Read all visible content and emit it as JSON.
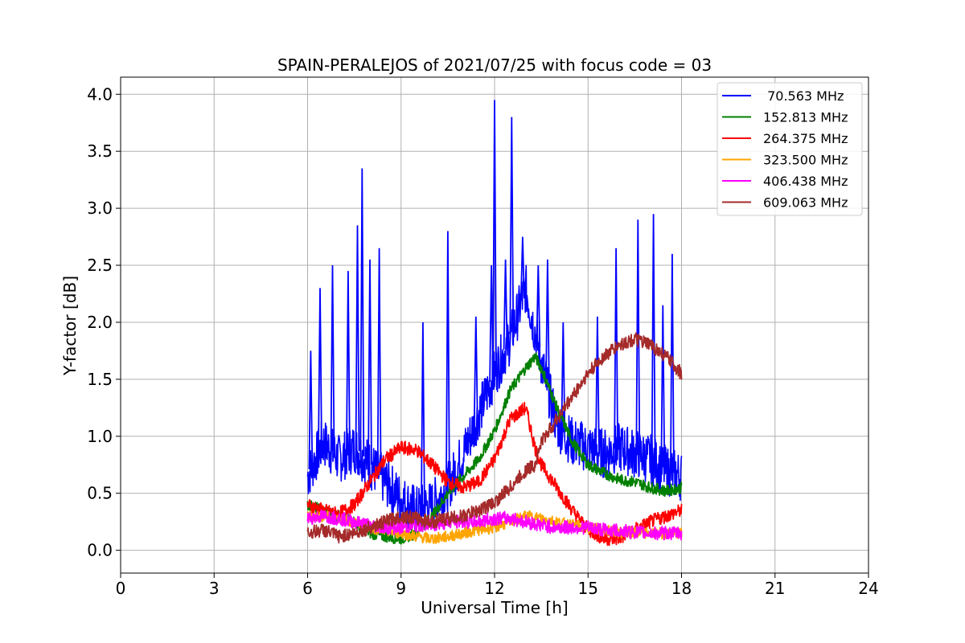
{
  "chart_data": {
    "type": "line",
    "title": "SPAIN-PERALEJOS of 2021/07/25 with focus code = 03",
    "xlabel": "Universal Time [h]",
    "ylabel": "Y-factor [dB]",
    "xlim": [
      0,
      24
    ],
    "ylim": [
      -0.2,
      4.15
    ],
    "xticks": [
      0,
      3,
      6,
      9,
      12,
      15,
      18,
      21,
      24
    ],
    "xtick_labels": [
      "0",
      "3",
      "6",
      "9",
      "12",
      "15",
      "18",
      "21",
      "24"
    ],
    "yticks": [
      0.0,
      0.5,
      1.0,
      1.5,
      2.0,
      2.5,
      3.0,
      3.5,
      4.0
    ],
    "ytick_labels": [
      "0.0",
      "0.5",
      "1.0",
      "1.5",
      "2.0",
      "2.5",
      "3.0",
      "3.5",
      "4.0"
    ],
    "grid": true,
    "legend_position": "top-right",
    "series": [
      {
        "name": " 70.563 MHz",
        "color": "#0000ff",
        "x": [
          6.0,
          6.5,
          7.0,
          7.5,
          8.0,
          8.5,
          9.0,
          9.5,
          10.0,
          10.5,
          11.0,
          11.5,
          12.0,
          12.5,
          13.0,
          13.5,
          14.0,
          14.5,
          15.0,
          15.5,
          16.0,
          16.5,
          17.0,
          17.5,
          18.0
        ],
        "y": [
          0.65,
          0.95,
          0.8,
          0.9,
          0.75,
          0.6,
          0.45,
          0.35,
          0.4,
          0.55,
          0.85,
          1.2,
          1.55,
          1.85,
          2.3,
          1.65,
          1.1,
          0.95,
          0.9,
          0.85,
          0.9,
          0.85,
          0.8,
          0.7,
          0.65
        ],
        "spikes": [
          [
            6.1,
            1.75
          ],
          [
            6.4,
            2.3
          ],
          [
            6.8,
            2.5
          ],
          [
            7.3,
            2.45
          ],
          [
            7.6,
            2.85
          ],
          [
            7.75,
            3.35
          ],
          [
            8.0,
            2.55
          ],
          [
            8.3,
            2.65
          ],
          [
            9.7,
            2.0
          ],
          [
            10.5,
            2.8
          ],
          [
            11.4,
            2.05
          ],
          [
            11.9,
            2.5
          ],
          [
            12.0,
            3.95
          ],
          [
            12.35,
            2.55
          ],
          [
            12.55,
            3.8
          ],
          [
            12.9,
            2.75
          ],
          [
            13.4,
            2.5
          ],
          [
            13.7,
            2.55
          ],
          [
            14.2,
            2.0
          ],
          [
            15.3,
            2.05
          ],
          [
            15.9,
            2.65
          ],
          [
            16.6,
            2.9
          ],
          [
            17.1,
            2.95
          ],
          [
            17.4,
            2.15
          ],
          [
            17.7,
            2.6
          ]
        ]
      },
      {
        "name": "152.813 MHz",
        "color": "#008000",
        "x": [
          6.0,
          6.5,
          7.0,
          7.5,
          8.0,
          8.5,
          9.0,
          9.5,
          10.0,
          10.5,
          11.0,
          11.5,
          12.0,
          12.5,
          13.0,
          13.3,
          13.5,
          14.0,
          14.5,
          15.0,
          15.5,
          16.0,
          16.5,
          17.0,
          17.5,
          18.0
        ],
        "y": [
          0.4,
          0.35,
          0.3,
          0.25,
          0.15,
          0.12,
          0.1,
          0.15,
          0.3,
          0.5,
          0.65,
          0.8,
          1.05,
          1.4,
          1.6,
          1.7,
          1.6,
          1.25,
          0.95,
          0.75,
          0.68,
          0.62,
          0.6,
          0.55,
          0.52,
          0.55
        ]
      },
      {
        "name": "264.375 MHz",
        "color": "#ff0000",
        "x": [
          6.0,
          6.5,
          7.0,
          7.5,
          8.0,
          8.5,
          9.0,
          9.5,
          10.0,
          10.5,
          11.0,
          11.5,
          12.0,
          12.5,
          13.0,
          13.3,
          13.5,
          14.0,
          14.5,
          15.0,
          15.5,
          16.0,
          16.5,
          17.0,
          17.5,
          18.0
        ],
        "y": [
          0.4,
          0.35,
          0.32,
          0.4,
          0.6,
          0.8,
          0.9,
          0.88,
          0.75,
          0.6,
          0.55,
          0.6,
          0.8,
          1.15,
          1.25,
          0.9,
          0.75,
          0.55,
          0.35,
          0.18,
          0.1,
          0.1,
          0.18,
          0.25,
          0.3,
          0.35
        ]
      },
      {
        "name": "323.500 MHz",
        "color": "#ffa500",
        "x": [
          6.0,
          6.5,
          7.0,
          7.5,
          8.0,
          8.5,
          9.0,
          9.5,
          10.0,
          10.5,
          11.0,
          11.5,
          12.0,
          12.5,
          13.0,
          13.5,
          14.0,
          14.5,
          15.0,
          15.5,
          16.0,
          16.5,
          17.0,
          17.5,
          18.0
        ],
        "y": [
          0.3,
          0.3,
          0.28,
          0.25,
          0.2,
          0.17,
          0.15,
          0.12,
          0.1,
          0.12,
          0.15,
          0.18,
          0.2,
          0.25,
          0.3,
          0.28,
          0.25,
          0.22,
          0.2,
          0.18,
          0.16,
          0.15,
          0.15,
          0.15,
          0.15
        ]
      },
      {
        "name": "406.438 MHz",
        "color": "#ff00ff",
        "x": [
          6.0,
          6.5,
          7.0,
          7.5,
          8.0,
          8.5,
          9.0,
          9.5,
          10.0,
          10.5,
          11.0,
          11.5,
          12.0,
          12.5,
          13.0,
          13.5,
          14.0,
          14.5,
          15.0,
          15.5,
          16.0,
          16.5,
          17.0,
          17.5,
          18.0
        ],
        "y": [
          0.28,
          0.3,
          0.28,
          0.25,
          0.22,
          0.2,
          0.2,
          0.22,
          0.22,
          0.25,
          0.25,
          0.25,
          0.28,
          0.28,
          0.25,
          0.22,
          0.2,
          0.2,
          0.2,
          0.18,
          0.17,
          0.16,
          0.15,
          0.15,
          0.15
        ]
      },
      {
        "name": "609.063 MHz",
        "color": "#a52a2a",
        "x": [
          6.0,
          6.5,
          7.0,
          7.5,
          8.0,
          8.5,
          9.0,
          9.5,
          10.0,
          10.5,
          11.0,
          11.5,
          12.0,
          12.5,
          13.0,
          13.3,
          13.5,
          14.0,
          14.5,
          15.0,
          15.5,
          16.0,
          16.5,
          17.0,
          17.5,
          18.0
        ],
        "y": [
          0.15,
          0.18,
          0.12,
          0.15,
          0.2,
          0.25,
          0.3,
          0.28,
          0.25,
          0.28,
          0.3,
          0.35,
          0.42,
          0.55,
          0.7,
          0.75,
          0.95,
          1.15,
          1.35,
          1.55,
          1.7,
          1.8,
          1.85,
          1.8,
          1.7,
          1.55
        ]
      }
    ]
  }
}
